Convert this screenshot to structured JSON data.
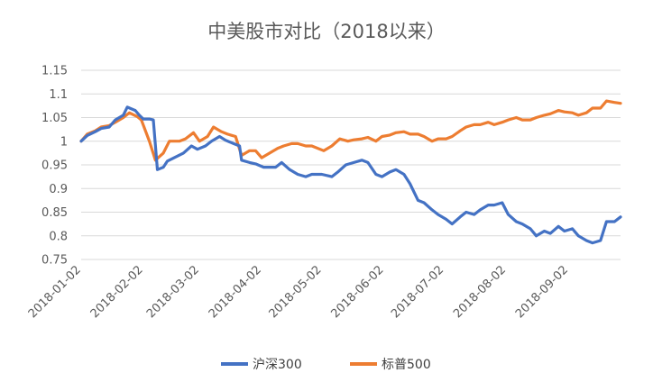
{
  "chart_data": {
    "type": "line",
    "title": "中美股市对比（2018以来）",
    "xlabel": "",
    "ylabel": "",
    "x_ticks": [
      "2018-01-02",
      "2018-02-02",
      "2018-03-02",
      "2018-04-02",
      "2018-05-02",
      "2018-06-02",
      "2018-07-02",
      "2018-08-02",
      "2018-09-02"
    ],
    "y_ticks": [
      "0.75",
      "0.8",
      "0.85",
      "0.9",
      "0.95",
      "1",
      "1.05",
      "1.1",
      "1.15"
    ],
    "x_range": [
      "2018-01-02",
      "2018-09-28"
    ],
    "ylim": [
      0.75,
      1.15
    ],
    "grid": "horizontal",
    "legend_position": "bottom",
    "series": [
      {
        "name": "沪深300",
        "color": "#4472C4",
        "points": [
          [
            "2018-01-02",
            1.0
          ],
          [
            "2018-01-05",
            1.012
          ],
          [
            "2018-01-09",
            1.02
          ],
          [
            "2018-01-12",
            1.027
          ],
          [
            "2018-01-16",
            1.03
          ],
          [
            "2018-01-19",
            1.045
          ],
          [
            "2018-01-23",
            1.055
          ],
          [
            "2018-01-25",
            1.072
          ],
          [
            "2018-01-29",
            1.065
          ],
          [
            "2018-01-31",
            1.055
          ],
          [
            "2018-02-02",
            1.047
          ],
          [
            "2018-02-05",
            1.047
          ],
          [
            "2018-02-07",
            1.045
          ],
          [
            "2018-02-09",
            0.94
          ],
          [
            "2018-02-12",
            0.945
          ],
          [
            "2018-02-14",
            0.958
          ],
          [
            "2018-02-22",
            0.975
          ],
          [
            "2018-02-26",
            0.99
          ],
          [
            "2018-03-01",
            0.983
          ],
          [
            "2018-03-05",
            0.99
          ],
          [
            "2018-03-08",
            1.0
          ],
          [
            "2018-03-12",
            1.01
          ],
          [
            "2018-03-15",
            1.002
          ],
          [
            "2018-03-19",
            0.995
          ],
          [
            "2018-03-22",
            0.99
          ],
          [
            "2018-03-23",
            0.96
          ],
          [
            "2018-03-27",
            0.955
          ],
          [
            "2018-03-30",
            0.952
          ],
          [
            "2018-04-03",
            0.945
          ],
          [
            "2018-04-09",
            0.945
          ],
          [
            "2018-04-12",
            0.955
          ],
          [
            "2018-04-16",
            0.94
          ],
          [
            "2018-04-20",
            0.93
          ],
          [
            "2018-04-24",
            0.925
          ],
          [
            "2018-04-27",
            0.93
          ],
          [
            "2018-05-02",
            0.93
          ],
          [
            "2018-05-07",
            0.925
          ],
          [
            "2018-05-10",
            0.935
          ],
          [
            "2018-05-14",
            0.95
          ],
          [
            "2018-05-18",
            0.955
          ],
          [
            "2018-05-22",
            0.96
          ],
          [
            "2018-05-25",
            0.955
          ],
          [
            "2018-05-29",
            0.93
          ],
          [
            "2018-06-01",
            0.925
          ],
          [
            "2018-06-05",
            0.935
          ],
          [
            "2018-06-08",
            0.94
          ],
          [
            "2018-06-12",
            0.93
          ],
          [
            "2018-06-15",
            0.91
          ],
          [
            "2018-06-19",
            0.875
          ],
          [
            "2018-06-22",
            0.87
          ],
          [
            "2018-06-26",
            0.855
          ],
          [
            "2018-06-29",
            0.845
          ],
          [
            "2018-07-03",
            0.835
          ],
          [
            "2018-07-06",
            0.825
          ],
          [
            "2018-07-10",
            0.84
          ],
          [
            "2018-07-13",
            0.85
          ],
          [
            "2018-07-17",
            0.845
          ],
          [
            "2018-07-20",
            0.855
          ],
          [
            "2018-07-24",
            0.865
          ],
          [
            "2018-07-27",
            0.865
          ],
          [
            "2018-07-31",
            0.87
          ],
          [
            "2018-08-03",
            0.845
          ],
          [
            "2018-08-07",
            0.83
          ],
          [
            "2018-08-10",
            0.825
          ],
          [
            "2018-08-14",
            0.815
          ],
          [
            "2018-08-17",
            0.8
          ],
          [
            "2018-08-21",
            0.81
          ],
          [
            "2018-08-24",
            0.805
          ],
          [
            "2018-08-28",
            0.82
          ],
          [
            "2018-08-31",
            0.81
          ],
          [
            "2018-09-04",
            0.815
          ],
          [
            "2018-09-07",
            0.8
          ],
          [
            "2018-09-11",
            0.79
          ],
          [
            "2018-09-14",
            0.785
          ],
          [
            "2018-09-18",
            0.79
          ],
          [
            "2018-09-21",
            0.83
          ],
          [
            "2018-09-25",
            0.83
          ],
          [
            "2018-09-28",
            0.84
          ]
        ]
      },
      {
        "name": "标普500",
        "color": "#ED7D31",
        "points": [
          [
            "2018-01-02",
            1.0
          ],
          [
            "2018-01-05",
            1.015
          ],
          [
            "2018-01-09",
            1.022
          ],
          [
            "2018-01-12",
            1.03
          ],
          [
            "2018-01-16",
            1.033
          ],
          [
            "2018-01-19",
            1.04
          ],
          [
            "2018-01-23",
            1.05
          ],
          [
            "2018-01-26",
            1.06
          ],
          [
            "2018-01-30",
            1.052
          ],
          [
            "2018-02-01",
            1.045
          ],
          [
            "2018-02-05",
            1.0
          ],
          [
            "2018-02-08",
            0.96
          ],
          [
            "2018-02-12",
            0.975
          ],
          [
            "2018-02-15",
            1.0
          ],
          [
            "2018-02-20",
            1.0
          ],
          [
            "2018-02-23",
            1.005
          ],
          [
            "2018-02-27",
            1.018
          ],
          [
            "2018-03-02",
            1.0
          ],
          [
            "2018-03-06",
            1.01
          ],
          [
            "2018-03-09",
            1.03
          ],
          [
            "2018-03-13",
            1.02
          ],
          [
            "2018-03-16",
            1.015
          ],
          [
            "2018-03-20",
            1.01
          ],
          [
            "2018-03-23",
            0.97
          ],
          [
            "2018-03-27",
            0.98
          ],
          [
            "2018-03-30",
            0.98
          ],
          [
            "2018-04-02",
            0.965
          ],
          [
            "2018-04-06",
            0.975
          ],
          [
            "2018-04-10",
            0.985
          ],
          [
            "2018-04-13",
            0.99
          ],
          [
            "2018-04-17",
            0.995
          ],
          [
            "2018-04-20",
            0.995
          ],
          [
            "2018-04-24",
            0.99
          ],
          [
            "2018-04-27",
            0.99
          ],
          [
            "2018-05-03",
            0.98
          ],
          [
            "2018-05-07",
            0.99
          ],
          [
            "2018-05-11",
            1.005
          ],
          [
            "2018-05-15",
            1.0
          ],
          [
            "2018-05-18",
            1.003
          ],
          [
            "2018-05-22",
            1.005
          ],
          [
            "2018-05-25",
            1.008
          ],
          [
            "2018-05-29",
            1.0
          ],
          [
            "2018-06-01",
            1.01
          ],
          [
            "2018-06-05",
            1.013
          ],
          [
            "2018-06-08",
            1.018
          ],
          [
            "2018-06-12",
            1.02
          ],
          [
            "2018-06-15",
            1.015
          ],
          [
            "2018-06-19",
            1.015
          ],
          [
            "2018-06-22",
            1.01
          ],
          [
            "2018-06-26",
            1.0
          ],
          [
            "2018-06-29",
            1.005
          ],
          [
            "2018-07-03",
            1.005
          ],
          [
            "2018-07-06",
            1.01
          ],
          [
            "2018-07-10",
            1.022
          ],
          [
            "2018-07-13",
            1.03
          ],
          [
            "2018-07-17",
            1.035
          ],
          [
            "2018-07-20",
            1.035
          ],
          [
            "2018-07-24",
            1.04
          ],
          [
            "2018-07-27",
            1.035
          ],
          [
            "2018-07-31",
            1.04
          ],
          [
            "2018-08-03",
            1.045
          ],
          [
            "2018-08-07",
            1.05
          ],
          [
            "2018-08-10",
            1.045
          ],
          [
            "2018-08-14",
            1.045
          ],
          [
            "2018-08-17",
            1.05
          ],
          [
            "2018-08-21",
            1.055
          ],
          [
            "2018-08-24",
            1.058
          ],
          [
            "2018-08-28",
            1.065
          ],
          [
            "2018-08-31",
            1.062
          ],
          [
            "2018-09-04",
            1.06
          ],
          [
            "2018-09-07",
            1.055
          ],
          [
            "2018-09-11",
            1.06
          ],
          [
            "2018-09-14",
            1.07
          ],
          [
            "2018-09-18",
            1.07
          ],
          [
            "2018-09-21",
            1.085
          ],
          [
            "2018-09-25",
            1.082
          ],
          [
            "2018-09-28",
            1.08
          ]
        ]
      }
    ]
  }
}
